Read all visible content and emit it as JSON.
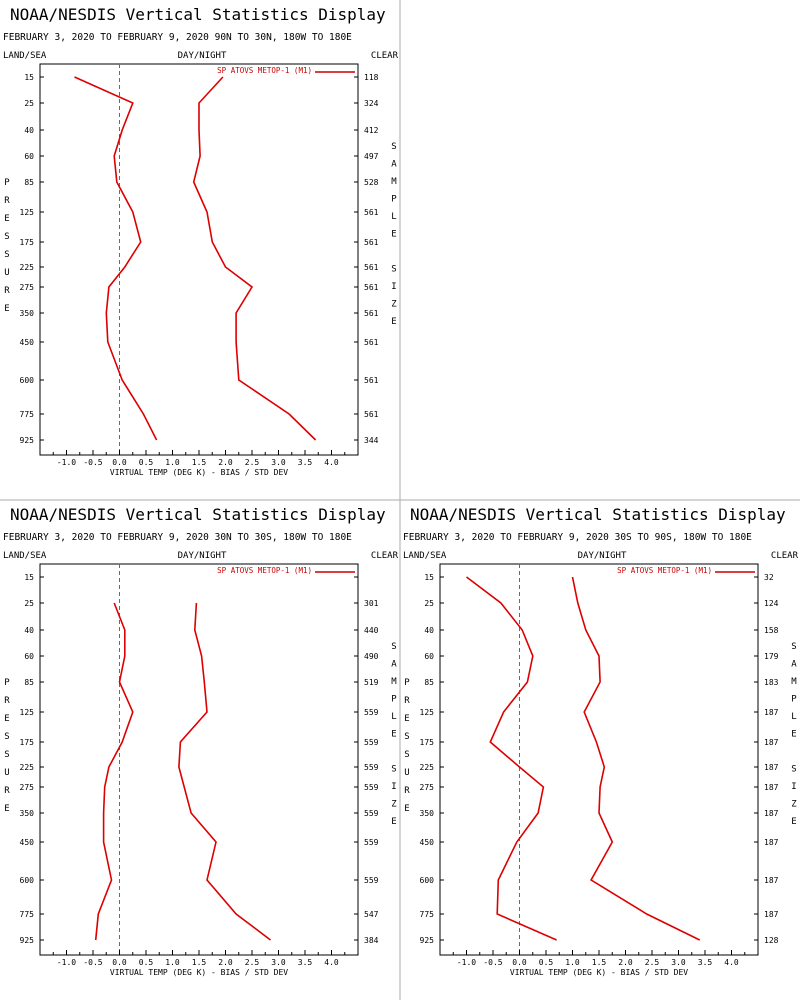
{
  "page_title": "NOAA/NESDIS Vertical Statistics Display",
  "chart_data": [
    {
      "type": "line",
      "title": "NOAA/NESDIS Vertical Statistics Display",
      "subtitle": "FEBRUARY 3, 2020 TO FEBRUARY 9, 2020 90N TO 30N, 180W TO 180E",
      "corner_left": "LAND/SEA",
      "corner_center": "DAY/NIGHT",
      "corner_right": "CLEAR",
      "xlabel": "VIRTUAL TEMP (DEG K) - BIAS / STD DEV",
      "ylabel": "PRESSURE",
      "y2label": "SAMPLE SIZE",
      "legend": "SP ATOVS METOP-1 (M1)",
      "legend_position": "top-right",
      "xlim": [
        -1.5,
        4.5
      ],
      "xticks": [
        "-1.0",
        "-0.5",
        "0.0",
        "0.5",
        "1.0",
        "1.5",
        "2.0",
        "2.5",
        "3.0",
        "3.5",
        "4.0"
      ],
      "pressure_levels": [
        "15",
        "25",
        "40",
        "60",
        "85",
        "125",
        "175",
        "225",
        "275",
        "350",
        "450",
        "600",
        "775",
        "925"
      ],
      "sample_size": [
        "118",
        "324",
        "412",
        "497",
        "528",
        "561",
        "561",
        "561",
        "561",
        "561",
        "561",
        "561",
        "561",
        "344"
      ],
      "series": [
        {
          "values": [
            -0.85,
            0.25,
            0.05,
            -0.1,
            -0.05,
            0.25,
            0.4,
            0.1,
            -0.2,
            -0.25,
            -0.22,
            0.05,
            0.45,
            0.7
          ]
        },
        {
          "values": [
            1.95,
            1.5,
            1.5,
            1.52,
            1.4,
            1.65,
            1.75,
            2.0,
            2.5,
            2.2,
            2.2,
            2.25,
            3.2,
            3.7
          ]
        }
      ]
    },
    {
      "type": "line",
      "title": "NOAA/NESDIS Vertical Statistics Display",
      "subtitle": "FEBRUARY 3, 2020 TO FEBRUARY 9, 2020 30N TO 30S, 180W TO 180E",
      "corner_left": "LAND/SEA",
      "corner_center": "DAY/NIGHT",
      "corner_right": "CLEAR",
      "xlabel": "VIRTUAL TEMP (DEG K) - BIAS / STD DEV",
      "ylabel": "PRESSURE",
      "y2label": "SAMPLE SIZE",
      "legend": "SP ATOVS METOP-1 (M1)",
      "legend_position": "top-right",
      "xlim": [
        -1.5,
        4.5
      ],
      "xticks": [
        "-1.0",
        "-0.5",
        "0.0",
        "0.5",
        "1.0",
        "1.5",
        "2.0",
        "2.5",
        "3.0",
        "3.5",
        "4.0"
      ],
      "pressure_levels": [
        "15",
        "25",
        "40",
        "60",
        "85",
        "125",
        "175",
        "225",
        "275",
        "350",
        "450",
        "600",
        "775",
        "925"
      ],
      "sample_size": [
        "",
        "301",
        "440",
        "490",
        "519",
        "559",
        "559",
        "559",
        "559",
        "559",
        "559",
        "559",
        "547",
        "384"
      ],
      "series": [
        {
          "values": [
            null,
            -0.1,
            0.1,
            0.1,
            0.0,
            0.25,
            0.05,
            -0.2,
            -0.28,
            -0.3,
            -0.3,
            -0.15,
            -0.4,
            -0.45
          ]
        },
        {
          "values": [
            null,
            1.45,
            1.42,
            1.55,
            1.6,
            1.65,
            1.15,
            1.12,
            1.22,
            1.35,
            1.82,
            1.65,
            2.2,
            2.85
          ]
        }
      ]
    },
    {
      "type": "line",
      "title": "NOAA/NESDIS Vertical Statistics Display",
      "subtitle": "FEBRUARY 3, 2020 TO FEBRUARY 9, 2020 30S TO 90S, 180W TO 180E",
      "corner_left": "LAND/SEA",
      "corner_center": "DAY/NIGHT",
      "corner_right": "CLEAR",
      "xlabel": "VIRTUAL TEMP (DEG K) - BIAS / STD DEV",
      "ylabel": "PRESSURE",
      "y2label": "SAMPLE SIZE",
      "legend": "SP ATOVS METOP-1 (M1)",
      "legend_position": "top-right",
      "xlim": [
        -1.5,
        4.5
      ],
      "xticks": [
        "-1.0",
        "-0.5",
        "0.0",
        "0.5",
        "1.0",
        "1.5",
        "2.0",
        "2.5",
        "3.0",
        "3.5",
        "4.0"
      ],
      "pressure_levels": [
        "15",
        "25",
        "40",
        "60",
        "85",
        "125",
        "175",
        "225",
        "275",
        "350",
        "450",
        "600",
        "775",
        "925"
      ],
      "sample_size": [
        "32",
        "124",
        "158",
        "179",
        "183",
        "187",
        "187",
        "187",
        "187",
        "187",
        "187",
        "187",
        "187",
        "128"
      ],
      "series": [
        {
          "values": [
            -1.0,
            -0.35,
            0.05,
            0.25,
            0.15,
            -0.3,
            -0.55,
            0.0,
            0.45,
            0.35,
            -0.05,
            -0.4,
            -0.42,
            0.7
          ]
        },
        {
          "values": [
            1.0,
            1.1,
            1.25,
            1.5,
            1.52,
            1.22,
            1.45,
            1.6,
            1.52,
            1.5,
            1.75,
            1.35,
            2.4,
            3.4
          ]
        }
      ]
    }
  ]
}
